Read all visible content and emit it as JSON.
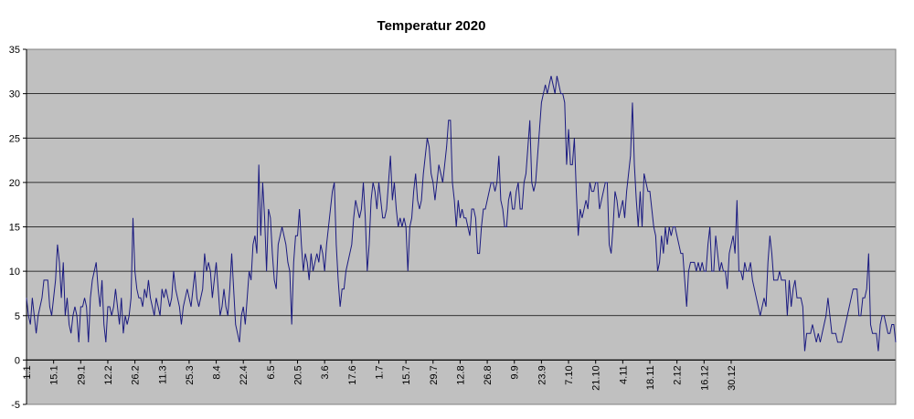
{
  "chart_data": {
    "type": "line",
    "title": "Temperatur 2020",
    "xlabel": "",
    "ylabel": "",
    "ylim": [
      -5,
      35
    ],
    "yticks": [
      -5,
      0,
      5,
      10,
      15,
      20,
      25,
      30,
      35
    ],
    "x_tick_labels": [
      "1.1",
      "15.1",
      "29.1",
      "12.2",
      "26.2",
      "11.3",
      "25.3",
      "8.4",
      "22.4",
      "6.5",
      "20.5",
      "3.6",
      "17.6",
      "1.7",
      "15.7",
      "29.7",
      "12.8",
      "26.8",
      "9.9",
      "23.9",
      "7.10",
      "21.10",
      "4.11",
      "18.11",
      "2.12",
      "16.12",
      "30.12"
    ],
    "grid": "horizontal",
    "plot_background": "#c0c0c0",
    "line_color": "#1a1a80",
    "series": [
      {
        "values": [
          7,
          5,
          4,
          7,
          5,
          3,
          5,
          6,
          7,
          9,
          9,
          9,
          6,
          5,
          7,
          9,
          13,
          11,
          7,
          11,
          5,
          7,
          4,
          3,
          5,
          6,
          5,
          2,
          6,
          6,
          7,
          6,
          2,
          7,
          9,
          10,
          11,
          8,
          6,
          9,
          4,
          2,
          6,
          6,
          5,
          6,
          8,
          6,
          4,
          7,
          3,
          5,
          4,
          5,
          7,
          16,
          10,
          8,
          7,
          7,
          6,
          8,
          7,
          9,
          7,
          6,
          5,
          7,
          6,
          5,
          8,
          7,
          8,
          7,
          6,
          7,
          10,
          8,
          7,
          6,
          4,
          6,
          7,
          8,
          7,
          6,
          8,
          10,
          7,
          6,
          7,
          8,
          12,
          10,
          11,
          10,
          7,
          9,
          11,
          8,
          5,
          6,
          8,
          6,
          5,
          8,
          12,
          8,
          4,
          3,
          2,
          5,
          6,
          4,
          7,
          10,
          9,
          13,
          14,
          12,
          22,
          14,
          20,
          16,
          10,
          17,
          16,
          12,
          9,
          8,
          13,
          14,
          15,
          14,
          13,
          11,
          10,
          4,
          11,
          14,
          14,
          17,
          13,
          10,
          12,
          11,
          9,
          12,
          10,
          11,
          12,
          11,
          13,
          12,
          10,
          13,
          15,
          17,
          19,
          20,
          13,
          9,
          6,
          8,
          8,
          10,
          11,
          12,
          13,
          16,
          18,
          17,
          16,
          17,
          20,
          16,
          10,
          13,
          18,
          20,
          19,
          17,
          20,
          18,
          16,
          16,
          17,
          20,
          23,
          18,
          20,
          17,
          15,
          16,
          15,
          16,
          15,
          10,
          15,
          16,
          19,
          21,
          18,
          17,
          18,
          21,
          23,
          25,
          24,
          21,
          20,
          18,
          20,
          22,
          21,
          20,
          22,
          24,
          27,
          27,
          20,
          18,
          15,
          18,
          16,
          17,
          16,
          16,
          15,
          14,
          17,
          17,
          16,
          12,
          12,
          15,
          17,
          17,
          18,
          19,
          20,
          20,
          19,
          20,
          23,
          18,
          17,
          15,
          15,
          18,
          19,
          17,
          17,
          19,
          20,
          17,
          17,
          20,
          21,
          24,
          27,
          20,
          19,
          20,
          23,
          26,
          29,
          30,
          31,
          30,
          31,
          32,
          31,
          30,
          32,
          31,
          30,
          30,
          29,
          22,
          26,
          22,
          22,
          25,
          19,
          14,
          17,
          16,
          17,
          18,
          17,
          20,
          19,
          19,
          20,
          20,
          17,
          18,
          19,
          20,
          20,
          13,
          12,
          15,
          19,
          18,
          16,
          17,
          18,
          16,
          19,
          21,
          23,
          29,
          22,
          18,
          15,
          19,
          15,
          21,
          20,
          19,
          19,
          17,
          15,
          14,
          10,
          11,
          14,
          12,
          15,
          13,
          15,
          14,
          15,
          15,
          14,
          13,
          12,
          12,
          9,
          6,
          10,
          11,
          11,
          11,
          10,
          11,
          10,
          11,
          10,
          10,
          13,
          15,
          10,
          10,
          14,
          12,
          10,
          11,
          10,
          10,
          8,
          12,
          13,
          14,
          12,
          18,
          10,
          10,
          9,
          11,
          10,
          10,
          11,
          9,
          8,
          7,
          6,
          5,
          6,
          7,
          6,
          11,
          14,
          12,
          9,
          9,
          9,
          10,
          9,
          9,
          9,
          5,
          9,
          6,
          8,
          9,
          7,
          7,
          7,
          6,
          1,
          3,
          3,
          3,
          4,
          3,
          2,
          3,
          2,
          3,
          4,
          5,
          7,
          5,
          3,
          3,
          3,
          2,
          2,
          2,
          3,
          4,
          5,
          6,
          7,
          8,
          8,
          8,
          5,
          5,
          7,
          7,
          8,
          12,
          4,
          3,
          3,
          3,
          1,
          4,
          5,
          5,
          4,
          3,
          3,
          4,
          4,
          2
        ]
      }
    ]
  }
}
